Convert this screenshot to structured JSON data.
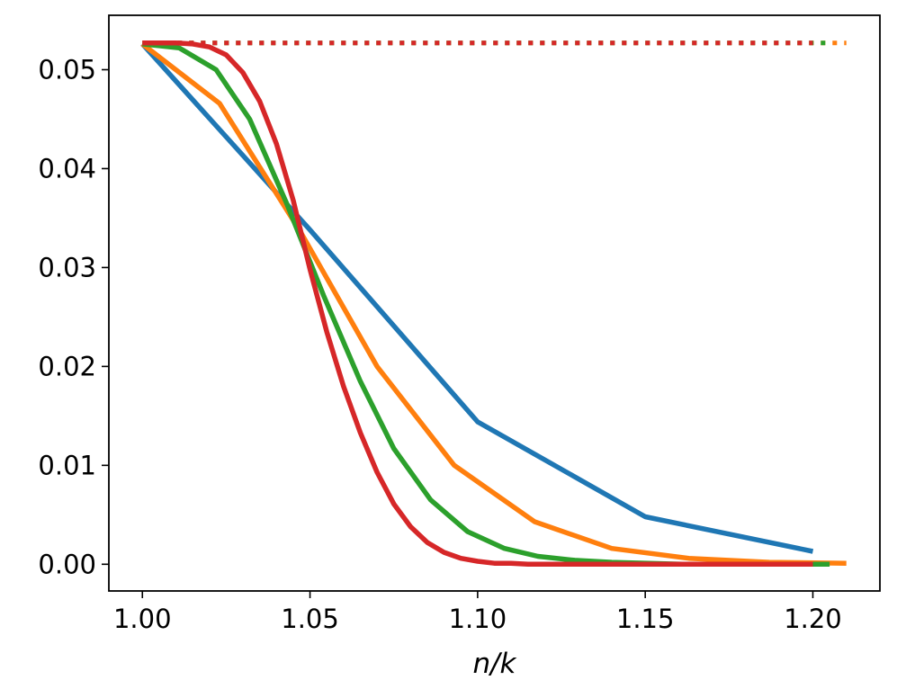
{
  "chart_data": {
    "type": "line",
    "title": "",
    "xlabel": "n/k",
    "ylabel": "",
    "xlim": [
      0.99,
      1.22
    ],
    "ylim": [
      -0.0027,
      0.0555
    ],
    "xticks": [
      1.0,
      1.05,
      1.1,
      1.15,
      1.2
    ],
    "xtick_labels": [
      "1.00",
      "1.05",
      "1.10",
      "1.15",
      "1.20"
    ],
    "yticks": [
      0.0,
      0.01,
      0.02,
      0.03,
      0.04,
      0.05
    ],
    "ytick_labels": [
      "0.00",
      "0.01",
      "0.02",
      "0.03",
      "0.04",
      "0.05"
    ],
    "grid": false,
    "legend": "none",
    "series": [
      {
        "color": "#1f77b4",
        "style": "solid",
        "x": [
          1.0,
          1.05,
          1.1,
          1.15,
          1.2
        ],
        "y": [
          0.0526,
          0.0338,
          0.0144,
          0.0048,
          0.0013
        ]
      },
      {
        "color": "#ff7f0e",
        "style": "solid",
        "x": [
          1.0,
          1.023,
          1.047,
          1.07,
          1.093,
          1.117,
          1.14,
          1.163,
          1.187,
          1.21
        ],
        "y": [
          0.0526,
          0.0466,
          0.0337,
          0.02,
          0.01,
          0.0043,
          0.0016,
          0.0006,
          0.0002,
          0.0001
        ]
      },
      {
        "color": "#2ca02c",
        "style": "solid",
        "x": [
          1.0,
          1.011,
          1.022,
          1.032,
          1.043,
          1.054,
          1.065,
          1.075,
          1.086,
          1.097,
          1.108,
          1.118,
          1.129,
          1.14,
          1.151,
          1.161,
          1.172,
          1.183,
          1.194,
          1.205
        ],
        "y": [
          0.0526,
          0.0522,
          0.05,
          0.045,
          0.0365,
          0.0272,
          0.0185,
          0.0117,
          0.0065,
          0.0033,
          0.0016,
          0.0008,
          0.0004,
          0.0002,
          0.0001,
          0.0,
          0.0,
          0.0,
          0.0,
          0.0
        ]
      },
      {
        "color": "#d62728",
        "style": "solid",
        "x": [
          1.0,
          1.005,
          1.01,
          1.015,
          1.02,
          1.025,
          1.03,
          1.035,
          1.04,
          1.045,
          1.05,
          1.055,
          1.06,
          1.065,
          1.07,
          1.075,
          1.08,
          1.085,
          1.09,
          1.095,
          1.1,
          1.105,
          1.11,
          1.115,
          1.12,
          1.13,
          1.14,
          1.16,
          1.18,
          1.2
        ],
        "y": [
          0.0527,
          0.0527,
          0.0527,
          0.0526,
          0.0523,
          0.0515,
          0.0497,
          0.0468,
          0.0425,
          0.0368,
          0.0298,
          0.0235,
          0.018,
          0.0133,
          0.0093,
          0.0061,
          0.0038,
          0.0022,
          0.0012,
          0.0006,
          0.0003,
          0.0001,
          0.0001,
          0.0,
          0.0,
          0.0,
          0.0,
          0.0,
          0.0,
          0.0
        ]
      }
    ],
    "reference_lines": [
      {
        "color": "#ff7f0e",
        "style": "dotted",
        "x": [
          1.0,
          1.21
        ],
        "y": [
          0.0527,
          0.0527
        ]
      },
      {
        "color": "#2ca02c",
        "style": "dotted",
        "x": [
          1.0,
          1.205
        ],
        "y": [
          0.0527,
          0.0527
        ]
      },
      {
        "color": "#d62728",
        "style": "dotted",
        "x": [
          1.0,
          1.2
        ],
        "y": [
          0.0527,
          0.0527
        ]
      }
    ]
  }
}
